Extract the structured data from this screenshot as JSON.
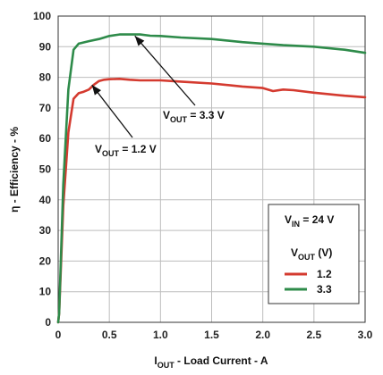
{
  "chart_data": {
    "type": "line",
    "xlabel": {
      "main": "I",
      "sub": "OUT",
      "rest": " - Load Current - A"
    },
    "ylabel": "η - Efficiency - %",
    "xlim": [
      0,
      3.0
    ],
    "ylim": [
      0,
      100
    ],
    "x_ticks": [
      "0",
      "0.5",
      "1.0",
      "1.5",
      "2.0",
      "2.5",
      "3.0"
    ],
    "y_ticks": [
      "0",
      "10",
      "20",
      "30",
      "40",
      "50",
      "60",
      "70",
      "80",
      "90",
      "100"
    ],
    "grid": true,
    "legend": {
      "placement": "bottom-right",
      "vin": {
        "main": "V",
        "sub": "IN",
        "rest": " = 24 V"
      },
      "title": {
        "main": "V",
        "sub": "OUT",
        "rest": " (V)"
      },
      "entries": [
        {
          "label": "1.2",
          "color": "#d43a2f"
        },
        {
          "label": "3.3",
          "color": "#2e8b4a"
        }
      ]
    },
    "annotations": [
      {
        "main": "V",
        "sub": "OUT",
        "rest": " = 3.3 V",
        "points_to": [
          0.75,
          93.5
        ]
      },
      {
        "main": "V",
        "sub": "OUT",
        "rest": " = 1.2 V",
        "points_to": [
          0.33,
          77.5
        ]
      }
    ],
    "series": [
      {
        "name": "1.2",
        "color": "#d43a2f",
        "x": [
          0.01,
          0.05,
          0.1,
          0.15,
          0.2,
          0.25,
          0.3,
          0.35,
          0.4,
          0.45,
          0.5,
          0.6,
          0.7,
          0.8,
          1.0,
          1.2,
          1.5,
          1.8,
          2.0,
          2.1,
          2.2,
          2.3,
          2.5,
          2.8,
          3.0
        ],
        "values": [
          3,
          38,
          62,
          73,
          74.8,
          75.3,
          76,
          77.6,
          78.8,
          79.2,
          79.4,
          79.5,
          79.2,
          79,
          79,
          78.6,
          78,
          77,
          76.5,
          75.5,
          76,
          75.8,
          75,
          74,
          73.5
        ]
      },
      {
        "name": "3.3",
        "color": "#2e8b4a",
        "x": [
          0.01,
          0.05,
          0.1,
          0.15,
          0.2,
          0.3,
          0.4,
          0.5,
          0.6,
          0.7,
          0.8,
          0.9,
          1.0,
          1.2,
          1.5,
          1.8,
          2.0,
          2.2,
          2.5,
          2.8,
          3.0
        ],
        "values": [
          3,
          45,
          76,
          89,
          91,
          91.8,
          92.5,
          93.5,
          94,
          94,
          94,
          93.6,
          93.5,
          93,
          92.5,
          91.5,
          91,
          90.5,
          90,
          89,
          88
        ]
      }
    ]
  }
}
